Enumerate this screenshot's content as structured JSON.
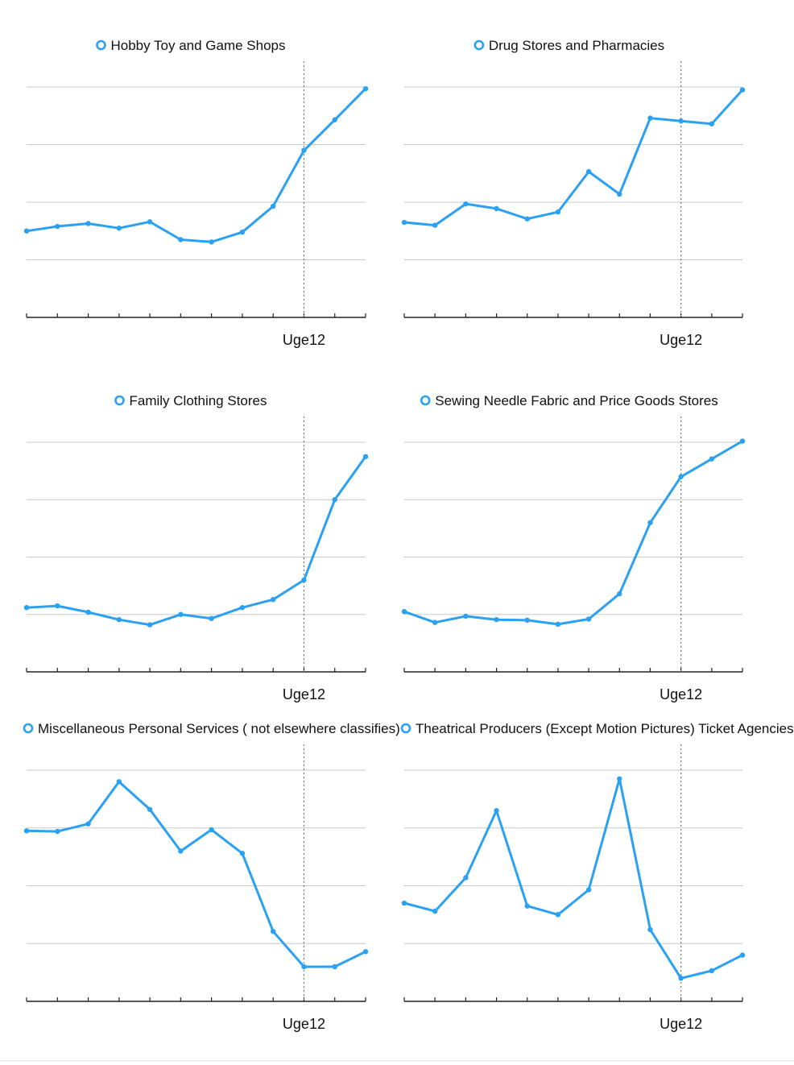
{
  "colors": {
    "series": "#2aa1f2",
    "grid": "#c8c8c8",
    "axis": "#222222",
    "marker_line": "#777777"
  },
  "chart_data": [
    {
      "type": "line",
      "series": [
        {
          "name": "Hobby Toy and Game Shops",
          "values": [
            1.5,
            1.58,
            1.63,
            1.55,
            1.66,
            1.35,
            1.31,
            1.48,
            1.93,
            2.9,
            3.43,
            3.97
          ]
        }
      ],
      "x_tick_label": "Uge12",
      "marker_index": 9,
      "ylim": [
        0,
        4
      ],
      "grid": true,
      "legend": "top-center"
    },
    {
      "type": "line",
      "series": [
        {
          "name": "Drug Stores and Pharmacies",
          "values": [
            1.65,
            1.6,
            1.97,
            1.89,
            1.71,
            1.83,
            2.53,
            2.14,
            3.46,
            3.41,
            3.36,
            3.95
          ]
        }
      ],
      "x_tick_label": "Uge12",
      "marker_index": 9,
      "ylim": [
        0,
        4
      ],
      "grid": true,
      "legend": "top-center"
    },
    {
      "type": "line",
      "series": [
        {
          "name": "Family Clothing Stores",
          "values": [
            1.12,
            1.15,
            1.04,
            0.91,
            0.82,
            1.0,
            0.93,
            1.12,
            1.26,
            1.6,
            3.0,
            3.75
          ]
        }
      ],
      "x_tick_label": "Uge12",
      "marker_index": 9,
      "ylim": [
        0,
        4
      ],
      "grid": true,
      "legend": "top-center"
    },
    {
      "type": "line",
      "series": [
        {
          "name": "Sewing Needle Fabric and Price Goods Stores",
          "values": [
            1.05,
            0.86,
            0.97,
            0.91,
            0.9,
            0.83,
            0.92,
            1.36,
            2.6,
            3.4,
            3.71,
            4.02
          ]
        }
      ],
      "x_tick_label": "Uge12",
      "marker_index": 9,
      "ylim": [
        0,
        4
      ],
      "grid": true,
      "legend": "top-center"
    },
    {
      "type": "line",
      "series": [
        {
          "name": "Miscellaneous Personal Services ( not elsewhere classifies)",
          "values": [
            2.95,
            2.94,
            3.07,
            3.8,
            3.32,
            2.6,
            2.97,
            2.56,
            1.21,
            0.6,
            0.6,
            0.86
          ]
        }
      ],
      "x_tick_label": "Uge12",
      "marker_index": 9,
      "ylim": [
        0,
        4
      ],
      "grid": true,
      "legend": "top-center"
    },
    {
      "type": "line",
      "series": [
        {
          "name": "Theatrical Producers (Except Motion Pictures) Ticket Agencies",
          "values": [
            1.7,
            1.56,
            2.14,
            3.3,
            1.65,
            1.5,
            1.93,
            3.85,
            1.24,
            0.4,
            0.53,
            0.8
          ]
        }
      ],
      "x_tick_label": "Uge12",
      "marker_index": 9,
      "ylim": [
        0,
        4
      ],
      "grid": true,
      "legend": "top-center"
    }
  ]
}
